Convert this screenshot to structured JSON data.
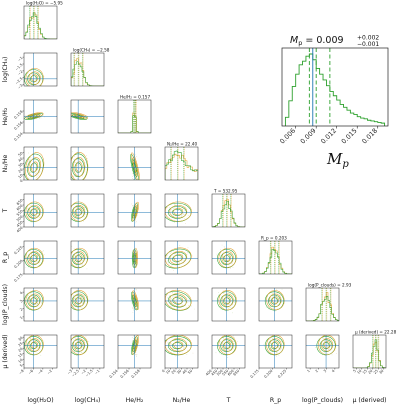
{
  "chart_data": [
    {
      "type": "scatter",
      "kind": "corner",
      "parameters": [
        {
          "label": "log(H₂O)",
          "title": "log(H₂O) = −5.95",
          "median": -5.95,
          "range": [
            -8,
            -1
          ],
          "ticks": [
            "−8",
            "−6",
            "−4",
            "−2"
          ]
        },
        {
          "label": "log(CH₄)",
          "title": "log(CH₄) = −2.58",
          "median": -2.58,
          "range": [
            -3.1,
            -0.7
          ],
          "ticks": [
            "−3",
            "−2.5",
            "−2",
            "−1.5",
            "−1"
          ]
        },
        {
          "label": "He/H₂",
          "title": "He/H₂ = 0.157",
          "median": 0.157,
          "range": [
            0.154,
            0.16
          ],
          "ticks": [
            "0.154",
            "0.156",
            "0.158"
          ]
        },
        {
          "label": "N₂/He",
          "title": "N₂/He = 22.40",
          "median": 22.4,
          "range": [
            0,
            60
          ],
          "ticks": [
            "0",
            "10",
            "20",
            "30",
            "40",
            "50"
          ]
        },
        {
          "label": "T",
          "title": "T = 532.95",
          "median": 532.95,
          "range": [
            400,
            700
          ],
          "ticks": [
            "400",
            "450",
            "500",
            "550",
            "600",
            "650"
          ]
        },
        {
          "label": "R_p",
          "title": "R_p = 0.203",
          "median": 0.203,
          "range": [
            0.175,
            0.235
          ],
          "ticks": [
            "0.175",
            "0.200",
            "0.225"
          ]
        },
        {
          "label": "log(P_clouds)",
          "title": "log(P_clouds) = 2.93",
          "median": 2.93,
          "range": [
            0.5,
            4.5
          ],
          "ticks": [
            "1",
            "2",
            "3",
            "4"
          ]
        },
        {
          "label": "μ (derived)",
          "title": "μ (derived) = 22.28",
          "median": 22.28,
          "range": [
            2,
            32
          ],
          "ticks": [
            "5",
            "10",
            "15",
            "20",
            "25",
            "30"
          ]
        }
      ],
      "series": [
        {
          "name": "",
          "color": "#2ca02c"
        },
        {
          "name": "",
          "color": "#e0a030"
        }
      ],
      "truth_color": "#1f77b4"
    },
    {
      "type": "bar",
      "kind": "histogram",
      "title_text": "M_p = 0.009",
      "title_base": "M",
      "title_sub": "p",
      "title_value": " = 0.009",
      "upper_err": "+0.002",
      "lower_err": "−0.001",
      "xlabel_base": "M",
      "xlabel_sub": "p",
      "xlim": [
        0.004,
        0.0195
      ],
      "x_ticks": [
        "0.006",
        "0.009",
        "0.012",
        "0.015",
        "0.018"
      ],
      "x_tick_values": [
        0.006,
        0.009,
        0.012,
        0.015,
        0.018
      ],
      "median": 0.009,
      "quantiles": [
        0.008,
        0.011
      ],
      "truth": 0.0085,
      "bin_edges": [
        0.0045,
        0.005,
        0.0055,
        0.006,
        0.0065,
        0.007,
        0.0075,
        0.008,
        0.0085,
        0.009,
        0.0095,
        0.01,
        0.0105,
        0.011,
        0.0115,
        0.012,
        0.0125,
        0.013,
        0.0135,
        0.014,
        0.0145,
        0.015,
        0.0155,
        0.016,
        0.0165,
        0.017,
        0.0175,
        0.018,
        0.0185,
        0.019
      ],
      "counts": [
        0.12,
        0.35,
        0.55,
        0.72,
        0.85,
        0.9,
        0.97,
        1.0,
        0.92,
        0.8,
        0.72,
        0.64,
        0.56,
        0.48,
        0.42,
        0.36,
        0.3,
        0.26,
        0.22,
        0.18,
        0.16,
        0.13,
        0.11,
        0.1,
        0.08,
        0.07,
        0.06,
        0.05,
        0.04
      ],
      "color": "#2ca02c",
      "truth_color": "#1f77b4"
    }
  ]
}
